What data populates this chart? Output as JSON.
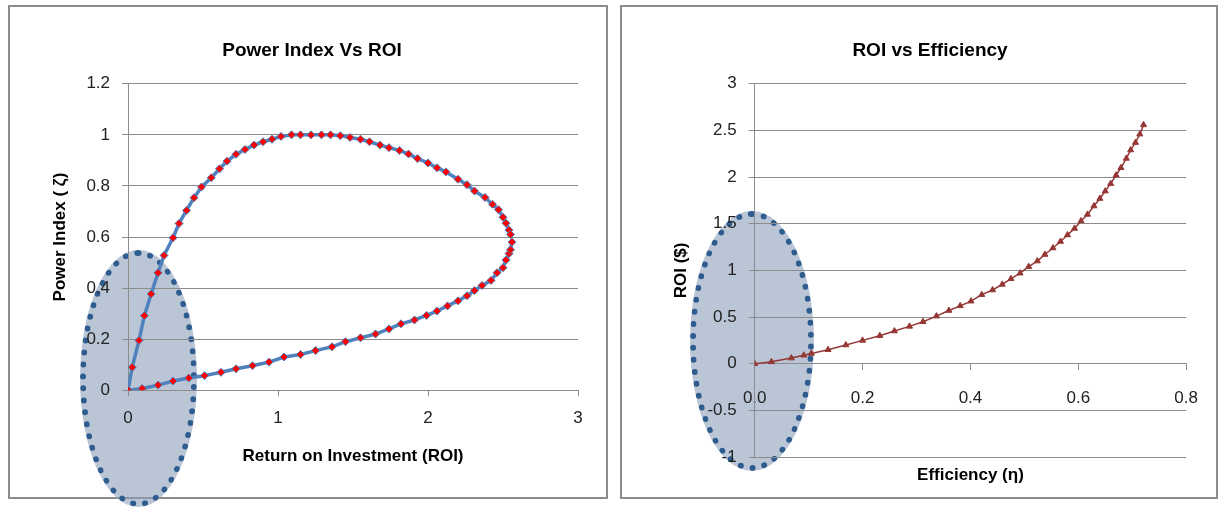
{
  "chart_data": [
    {
      "type": "line",
      "title": "Power Index Vs ROI",
      "xlabel": "Return on Investment (ROI)",
      "ylabel": "Power Index ( ζ)",
      "xlim": [
        0,
        3
      ],
      "xticks": [
        0,
        1,
        2,
        3
      ],
      "ylim": [
        0,
        1.2
      ],
      "yticks": [
        0,
        0.2,
        0.4,
        0.6,
        0.8,
        1,
        1.2
      ],
      "grid": "y",
      "legend": false,
      "marker": "diamond",
      "line_style": "solid",
      "series": [
        {
          "color": "#4f81bd",
          "x": [
            0,
            0.094,
            0.2,
            0.3,
            0.405,
            0.51,
            0.62,
            0.72,
            0.83,
            0.94,
            1.04,
            1.15,
            1.25,
            1.36,
            1.45,
            1.55,
            1.65,
            1.74,
            1.82,
            1.91,
            1.99,
            2.06,
            2.13,
            2.2,
            2.26,
            2.31,
            2.36,
            2.42,
            2.46,
            2.5,
            2.52,
            2.54,
            2.55,
            2.56
          ],
          "values": [
            0,
            0.007,
            0.02,
            0.036,
            0.048,
            0.057,
            0.07,
            0.084,
            0.096,
            0.11,
            0.13,
            0.14,
            0.155,
            0.17,
            0.19,
            0.205,
            0.22,
            0.24,
            0.26,
            0.275,
            0.293,
            0.31,
            0.33,
            0.35,
            0.37,
            0.39,
            0.41,
            0.43,
            0.46,
            0.48,
            0.51,
            0.535,
            0.55,
            0.58
          ],
          "colors": [
            "#ff0000",
            "#ff0000",
            "#ff0000",
            "#ff0000",
            "#ff0000",
            "#ff0000",
            "#ff0000",
            "#ff0000",
            "#ff0000",
            "#ff0000",
            "#ff0000",
            "#ff0000",
            "#ff0000",
            "#ff0000",
            "#ff0000",
            "#ff0000",
            "#ff0000",
            "#ff0000",
            "#ff0000",
            "#ff0000",
            "#ff0000",
            "#ff0000",
            "#ff0000",
            "#ff0000",
            "#ff0000",
            "#ff0000",
            "#ff0000",
            "#ff0000",
            "#ff0000",
            "#ff0000",
            "#ff0000",
            "#ff0000",
            "#ff0000",
            "#ff0000"
          ]
        },
        {
          "color": "#4f81bd",
          "x": [
            0,
            0.028,
            0.073,
            0.109,
            0.154,
            0.2,
            0.24,
            0.3,
            0.34,
            0.39,
            0.44,
            0.49,
            0.555,
            0.61,
            0.66,
            0.72,
            0.78,
            0.84,
            0.9,
            0.96,
            1.02,
            1.09,
            1.15,
            1.22,
            1.29,
            1.35,
            1.415,
            1.48,
            1.55,
            1.61,
            1.68,
            1.74,
            1.81,
            1.87,
            1.93,
            2.0,
            2.06,
            2.12,
            2.2,
            2.26,
            2.31,
            2.38,
            2.43,
            2.47,
            2.5,
            2.52,
            2.54,
            2.55
          ],
          "values": [
            0,
            0.09,
            0.195,
            0.292,
            0.377,
            0.46,
            0.528,
            0.597,
            0.653,
            0.704,
            0.754,
            0.796,
            0.832,
            0.867,
            0.897,
            0.924,
            0.943,
            0.96,
            0.973,
            0.983,
            0.994,
            1.0,
            1.0,
            1.0,
            1.0,
            1.0,
            0.997,
            0.99,
            0.983,
            0.973,
            0.96,
            0.95,
            0.939,
            0.925,
            0.907,
            0.89,
            0.871,
            0.855,
            0.826,
            0.805,
            0.78,
            0.755,
            0.728,
            0.707,
            0.677,
            0.654,
            0.627,
            0.61
          ],
          "colors": [
            "#ff0000",
            "#ff0000",
            "#ff0000",
            "#ff0000",
            "#ff0000",
            "#ff0000",
            "#ff0000",
            "#ff0000",
            "#ff0000",
            "#ff0000",
            "#ff0000",
            "#ff0000",
            "#ff0000",
            "#ff0000",
            "#ff0000",
            "#ff0000",
            "#ff0000",
            "#ff0000",
            "#ff0000",
            "#ff0000",
            "#ff0000",
            "#ff0000",
            "#ff0000",
            "#ff0000",
            "#ff0000",
            "#ff0000",
            "#ff0000",
            "#ff0000",
            "#ff0000",
            "#ff0000",
            "#ff0000",
            "#ff0000",
            "#ff0000",
            "#ff0000",
            "#ff0000",
            "#ff0000",
            "#ff0000",
            "#ff0000",
            "#ff0000",
            "#ff0000",
            "#ff0000",
            "#ff0000",
            "#ff0000",
            "#ff0000",
            "#ff0000",
            "#ff0000",
            "#ff0000",
            "#ff0000"
          ]
        }
      ]
    },
    {
      "type": "line",
      "title": "ROI vs Efficiency",
      "xlabel": "Efficiency (η)",
      "ylabel": "ROI ($)",
      "xlim": [
        0,
        0.8
      ],
      "xticks": [
        {
          "value": 0,
          "label": "0.0"
        },
        0.2,
        0.4,
        0.6,
        0.8
      ],
      "ylim": [
        -1,
        3
      ],
      "yticks": [
        -1,
        -0.5,
        0,
        0.5,
        1,
        1.5,
        2,
        2.5,
        3
      ],
      "grid": "y",
      "legend": false,
      "marker": "triangle",
      "line_style": "solid",
      "series": [
        {
          "color": "#953735",
          "x": [
            0,
            0.031,
            0.068,
            0.091,
            0.105,
            0.136,
            0.169,
            0.2,
            0.232,
            0.259,
            0.287,
            0.312,
            0.337,
            0.36,
            0.381,
            0.401,
            0.421,
            0.441,
            0.459,
            0.475,
            0.492,
            0.508,
            0.524,
            0.538,
            0.553,
            0.567,
            0.58,
            0.593,
            0.605,
            0.617,
            0.629,
            0.64,
            0.65,
            0.66,
            0.67,
            0.679,
            0.689,
            0.697,
            0.706,
            0.714,
            0.721
          ],
          "values": [
            0,
            0.02,
            0.06,
            0.09,
            0.11,
            0.15,
            0.2,
            0.25,
            0.3,
            0.35,
            0.4,
            0.45,
            0.51,
            0.57,
            0.62,
            0.67,
            0.74,
            0.79,
            0.85,
            0.91,
            0.97,
            1.04,
            1.1,
            1.17,
            1.24,
            1.31,
            1.38,
            1.45,
            1.53,
            1.6,
            1.69,
            1.77,
            1.85,
            1.93,
            2.02,
            2.1,
            2.2,
            2.29,
            2.37,
            2.46,
            2.56
          ]
        }
      ]
    }
  ]
}
